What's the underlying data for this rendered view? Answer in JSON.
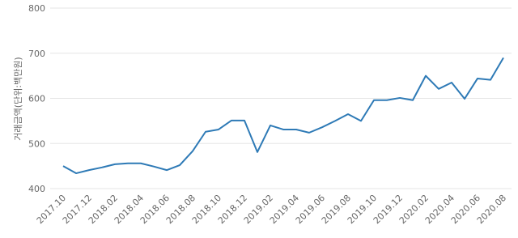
{
  "chart_data": {
    "type": "line",
    "y_label": "거래금액(단위:백만원)",
    "categories": [
      "2017.10",
      null,
      "2017.12",
      null,
      "2018.02",
      null,
      "2018.04",
      null,
      "2018.06",
      null,
      "2018.08",
      null,
      "2018.10",
      null,
      "2018.12",
      null,
      "2019.02",
      null,
      "2019.04",
      null,
      "2019.06",
      null,
      "2019.08",
      null,
      "2019.10",
      null,
      "2019.12",
      null,
      "2020.02",
      null,
      "2020.04",
      null,
      "2020.06",
      null,
      "2020.08"
    ],
    "series": [
      {
        "color": "#2e7ab6",
        "values": [
          450,
          434,
          441,
          447,
          454,
          456,
          456,
          449,
          441,
          452,
          483,
          526,
          531,
          551,
          551,
          481,
          540,
          531,
          531,
          524,
          536,
          550,
          565,
          550,
          596,
          596,
          601,
          596,
          650,
          621,
          635,
          599,
          644,
          641,
          690
        ]
      }
    ],
    "ylim": [
      400,
      800
    ],
    "yticks": [
      400,
      500,
      600,
      700,
      800
    ],
    "grid": true
  }
}
